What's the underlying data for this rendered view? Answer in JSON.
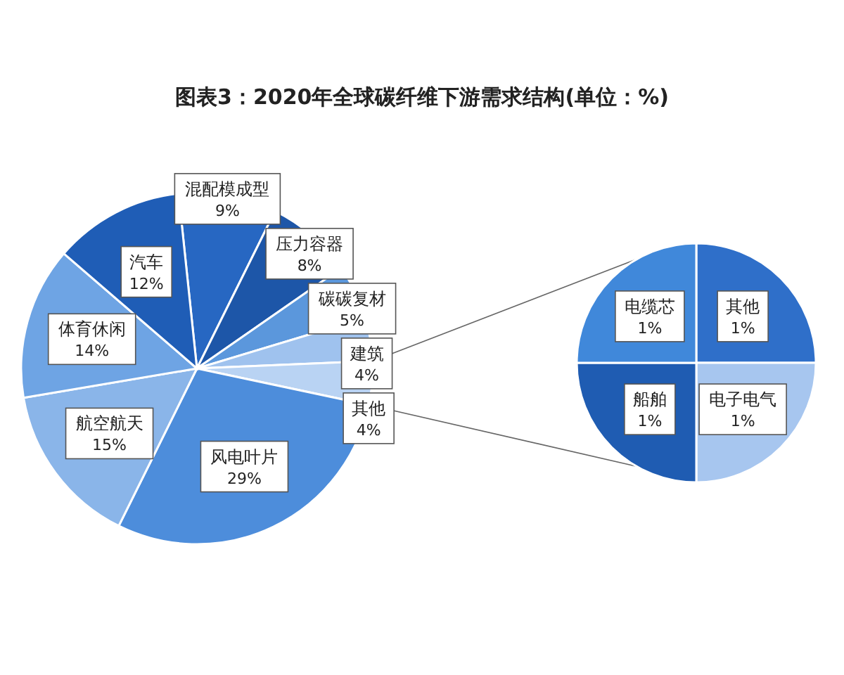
{
  "chart_data": [
    {
      "type": "pie",
      "title": "图表3：2020年全球碳纤维下游需求结构(单位：%)",
      "categories": [
        "混配模成型",
        "压力容器",
        "碳碳复材",
        "建筑",
        "其他",
        "风电叶片",
        "航空航天",
        "体育休闲",
        "汽车"
      ],
      "values": [
        9,
        8,
        5,
        4,
        4,
        29,
        15,
        14,
        12
      ],
      "colors": [
        "#2767c2",
        "#1d56a8",
        "#5b97dc",
        "#9fc2ee",
        "#b9d3f3",
        "#4d8ddb",
        "#8ab5e9",
        "#6ea4e4",
        "#1f5db6"
      ],
      "value_labels": [
        "9%",
        "8%",
        "5%",
        "4%",
        "4%",
        "29%",
        "15%",
        "14%",
        "12%"
      ]
    },
    {
      "type": "pie",
      "categories": [
        "其他",
        "电子电气",
        "船舶",
        "电缆芯"
      ],
      "values": [
        1,
        1,
        1,
        1
      ],
      "colors": [
        "#2f6fc9",
        "#a7c6ef",
        "#1f5cb2",
        "#4088da"
      ],
      "value_labels": [
        "1%",
        "1%",
        "1%",
        "1%"
      ]
    }
  ]
}
